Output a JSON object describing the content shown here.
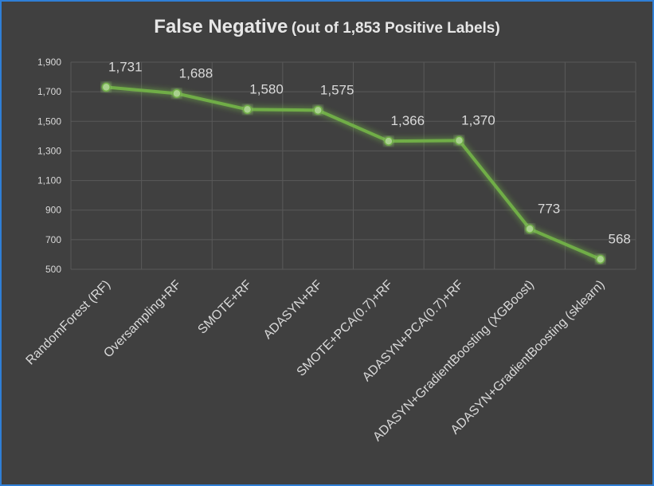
{
  "chart_data": {
    "type": "line",
    "title": "False Negative",
    "subtitle": "(out of 1,853 Positive Labels)",
    "categories": [
      "RandomForest (RF)",
      "Oversampling+RF",
      "SMOTE+RF",
      "ADASYN+RF",
      "SMOTE+PCA(0.7)+RF",
      "ADASYN+PCA(0.7)+RF",
      "ADASYN+GradientBoosting (XGBoost)",
      "ADASYN+GradientBoosting (sklearn)"
    ],
    "values": [
      1731,
      1688,
      1580,
      1575,
      1366,
      1370,
      773,
      568
    ],
    "data_labels": [
      "1,731",
      "1,688",
      "1,580",
      "1,575",
      "1,366",
      "1,370",
      "773",
      "568"
    ],
    "yticks": [
      500,
      700,
      900,
      1100,
      1300,
      1500,
      1700,
      1900
    ],
    "ytick_labels": [
      "500",
      "700",
      "900",
      "1,100",
      "1,300",
      "1,500",
      "1,700",
      "1,900"
    ],
    "ylim": [
      500,
      1900
    ],
    "grid": true,
    "colors": {
      "line": "#70ad47",
      "marker": "#a9d18e",
      "background": "#404040",
      "grid": "#595959",
      "text": "#d9d9d9",
      "border": "#2f7fd6"
    }
  }
}
